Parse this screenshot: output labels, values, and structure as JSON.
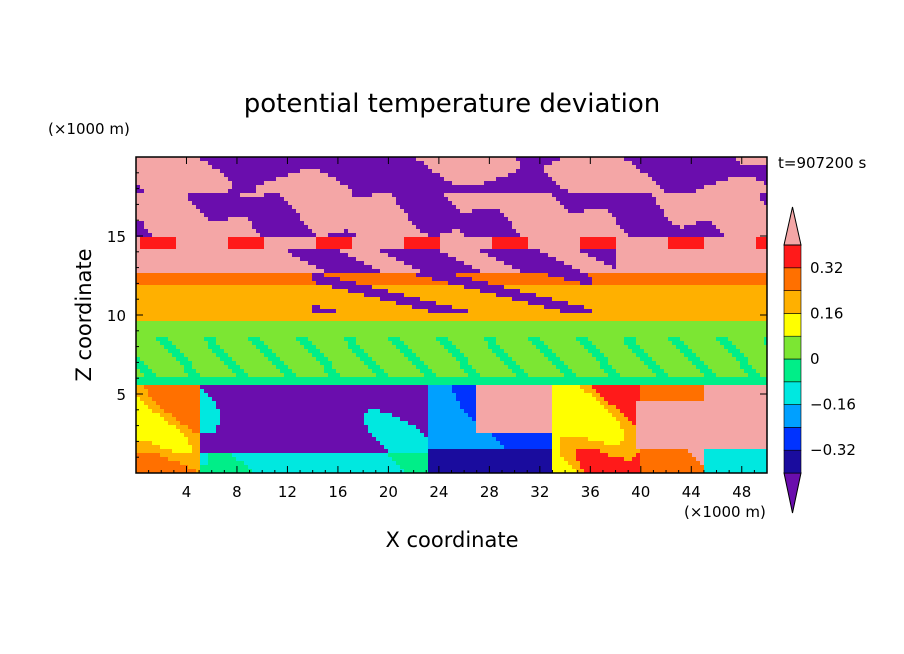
{
  "chart_data": {
    "type": "heatmap",
    "title": "potential temperature deviation",
    "xlabel": "X coordinate",
    "ylabel": "Z coordinate",
    "x_unit": "(×1000 m)",
    "y_unit": "(×1000 m)",
    "time_label": "t=907200 s",
    "xlim": [
      0,
      50
    ],
    "ylim": [
      0,
      20
    ],
    "x_ticks": [
      4,
      8,
      12,
      16,
      20,
      24,
      28,
      32,
      36,
      40,
      44,
      48
    ],
    "y_ticks": [
      5,
      10,
      15
    ],
    "x_tick_labels": [
      "4",
      "8",
      "12",
      "16",
      "20",
      "24",
      "28",
      "32",
      "36",
      "40",
      "44",
      "48"
    ],
    "y_tick_labels": [
      "5",
      "10",
      "15"
    ],
    "colorbar": {
      "levels": [
        -0.4,
        -0.32,
        -0.24,
        -0.16,
        -0.08,
        0,
        0.08,
        0.16,
        0.24,
        0.32,
        0.4
      ],
      "tick_labels": [
        "0.32",
        "0.16",
        "0",
        "−0.16",
        "−0.32"
      ],
      "tick_values": [
        0.32,
        0.16,
        0,
        -0.16,
        -0.32
      ],
      "colors": [
        "#6a0dad",
        "#1a0c9e",
        "#0033ff",
        "#00a0ff",
        "#00e8e0",
        "#00ee88",
        "#7ce633",
        "#ffff00",
        "#ffb000",
        "#ff7000",
        "#ff1a1a",
        "#f4a6a6"
      ],
      "extend": "both"
    },
    "grid": false
  }
}
